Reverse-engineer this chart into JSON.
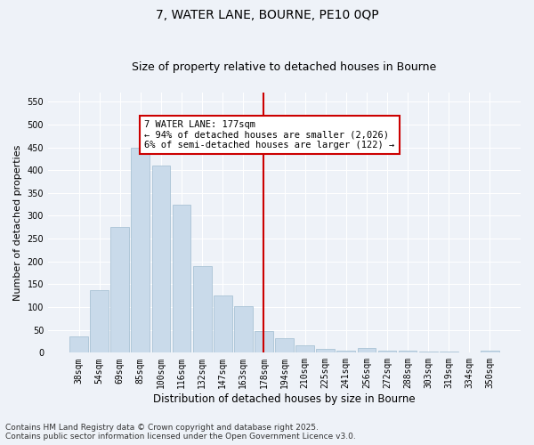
{
  "title": "7, WATER LANE, BOURNE, PE10 0QP",
  "subtitle": "Size of property relative to detached houses in Bourne",
  "xlabel": "Distribution of detached houses by size in Bourne",
  "ylabel": "Number of detached properties",
  "bar_color": "#c9daea",
  "bar_edgecolor": "#a0bcd0",
  "background_color": "#eef2f8",
  "grid_color": "#ffffff",
  "categories": [
    "38sqm",
    "54sqm",
    "69sqm",
    "85sqm",
    "100sqm",
    "116sqm",
    "132sqm",
    "147sqm",
    "163sqm",
    "178sqm",
    "194sqm",
    "210sqm",
    "225sqm",
    "241sqm",
    "256sqm",
    "272sqm",
    "288sqm",
    "303sqm",
    "319sqm",
    "334sqm",
    "350sqm"
  ],
  "values": [
    35,
    137,
    275,
    450,
    410,
    325,
    190,
    125,
    103,
    47,
    32,
    17,
    8,
    5,
    10,
    5,
    4,
    2,
    3,
    1,
    5
  ],
  "vline_index": 9,
  "vline_color": "#cc0000",
  "annotation_text": "7 WATER LANE: 177sqm\n← 94% of detached houses are smaller (2,026)\n6% of semi-detached houses are larger (122) →",
  "annotation_box_color": "#ffffff",
  "annotation_box_edgecolor": "#cc0000",
  "ylim": [
    0,
    570
  ],
  "yticks": [
    0,
    50,
    100,
    150,
    200,
    250,
    300,
    350,
    400,
    450,
    500,
    550
  ],
  "footer": "Contains HM Land Registry data © Crown copyright and database right 2025.\nContains public sector information licensed under the Open Government Licence v3.0.",
  "title_fontsize": 10,
  "subtitle_fontsize": 9,
  "xlabel_fontsize": 8.5,
  "ylabel_fontsize": 8,
  "tick_fontsize": 7,
  "footer_fontsize": 6.5,
  "annot_fontsize": 7.5
}
